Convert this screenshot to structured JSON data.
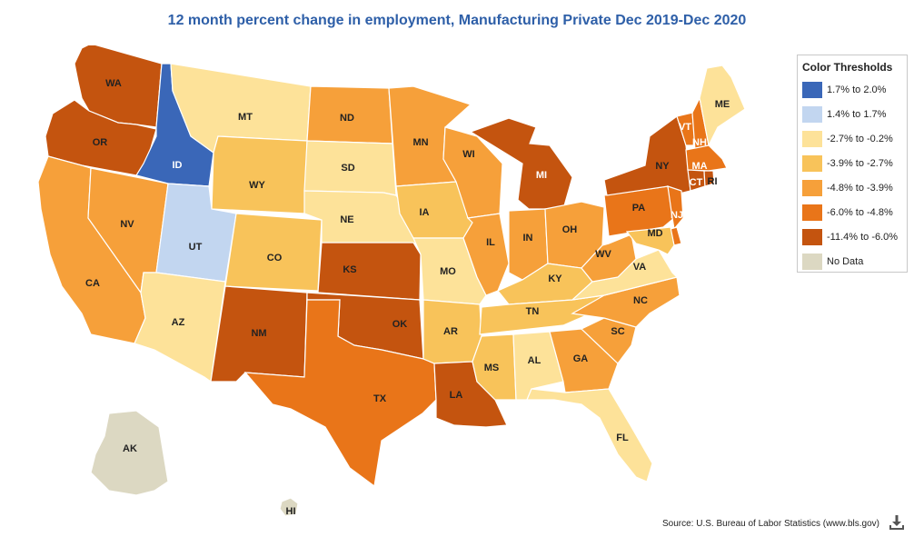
{
  "title": "12 month percent change in employment, Manufacturing Private Dec 2019-Dec 2020",
  "legend": {
    "title": "Color Thresholds",
    "items": [
      {
        "label": "1.7% to 2.0%",
        "color": "#3a67b8"
      },
      {
        "label": "1.4% to 1.7%",
        "color": "#c2d6f0"
      },
      {
        "label": "-2.7% to -0.2%",
        "color": "#fde299"
      },
      {
        "label": "-3.9% to -2.7%",
        "color": "#f8c35a"
      },
      {
        "label": "-4.8% to -3.9%",
        "color": "#f6a03a"
      },
      {
        "label": "-6.0% to -4.8%",
        "color": "#e97519"
      },
      {
        "label": "-11.4% to -6.0%",
        "color": "#c4540f"
      },
      {
        "label": "No Data",
        "color": "#dcd8c2"
      }
    ]
  },
  "states": [
    {
      "code": "WA",
      "bin": 6
    },
    {
      "code": "OR",
      "bin": 6
    },
    {
      "code": "CA",
      "bin": 4
    },
    {
      "code": "NV",
      "bin": 4
    },
    {
      "code": "ID",
      "bin": 0
    },
    {
      "code": "MT",
      "bin": 2
    },
    {
      "code": "WY",
      "bin": 3
    },
    {
      "code": "UT",
      "bin": 1
    },
    {
      "code": "AZ",
      "bin": 2
    },
    {
      "code": "CO",
      "bin": 3
    },
    {
      "code": "NM",
      "bin": 6
    },
    {
      "code": "ND",
      "bin": 4
    },
    {
      "code": "SD",
      "bin": 2
    },
    {
      "code": "NE",
      "bin": 2
    },
    {
      "code": "KS",
      "bin": 6
    },
    {
      "code": "OK",
      "bin": 6
    },
    {
      "code": "TX",
      "bin": 5
    },
    {
      "code": "MN",
      "bin": 4
    },
    {
      "code": "IA",
      "bin": 3
    },
    {
      "code": "MO",
      "bin": 2
    },
    {
      "code": "AR",
      "bin": 3
    },
    {
      "code": "LA",
      "bin": 6
    },
    {
      "code": "WI",
      "bin": 4
    },
    {
      "code": "IL",
      "bin": 4
    },
    {
      "code": "MI",
      "bin": 6
    },
    {
      "code": "IN",
      "bin": 4
    },
    {
      "code": "OH",
      "bin": 4
    },
    {
      "code": "KY",
      "bin": 3
    },
    {
      "code": "TN",
      "bin": 3
    },
    {
      "code": "MS",
      "bin": 3
    },
    {
      "code": "AL",
      "bin": 2
    },
    {
      "code": "GA",
      "bin": 4
    },
    {
      "code": "FL",
      "bin": 2
    },
    {
      "code": "SC",
      "bin": 4
    },
    {
      "code": "NC",
      "bin": 4
    },
    {
      "code": "VA",
      "bin": 2
    },
    {
      "code": "WV",
      "bin": 4
    },
    {
      "code": "PA",
      "bin": 5
    },
    {
      "code": "NY",
      "bin": 6
    },
    {
      "code": "VT",
      "bin": 5
    },
    {
      "code": "NH",
      "bin": 5
    },
    {
      "code": "ME",
      "bin": 2
    },
    {
      "code": "MA",
      "bin": 5
    },
    {
      "code": "CT",
      "bin": 6
    },
    {
      "code": "RI",
      "bin": 6
    },
    {
      "code": "NJ",
      "bin": 5
    },
    {
      "code": "DE",
      "bin": 5
    },
    {
      "code": "MD",
      "bin": 3
    },
    {
      "code": "AK",
      "bin": 7
    },
    {
      "code": "HI",
      "bin": 7
    }
  ],
  "source": "Source: U.S. Bureau of Labor Statistics (www.bls.gov)",
  "download_icon": "download-icon"
}
